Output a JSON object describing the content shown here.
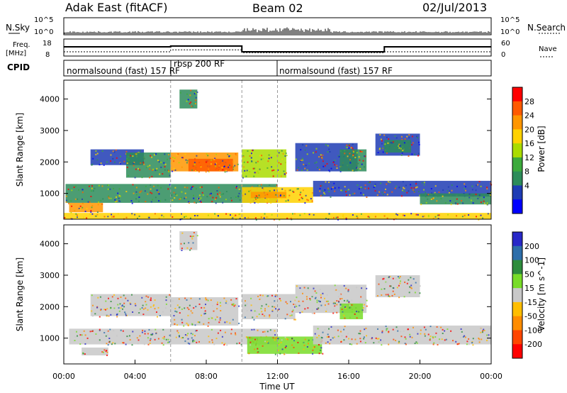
{
  "header": {
    "station": "Adak East (fitACF)",
    "beam": "Beam 02",
    "date": "02/Jul/2013"
  },
  "noise_panel": {
    "left_label": "N.Sky",
    "right_label": "N.Search",
    "ticks": [
      "10^5",
      "10^0"
    ]
  },
  "freq_panel": {
    "left_label_1": "Freq.",
    "left_label_2": "[MHz]",
    "left_ticks": [
      "18",
      "8"
    ],
    "right_label": "Nave",
    "right_ticks": [
      "60",
      "0"
    ]
  },
  "cpid_panel": {
    "label": "CPID",
    "segments": [
      {
        "text": "normalsound (fast) 157 RF",
        "start_h": 0
      },
      {
        "text": "rbsp 200 RF",
        "start_h": 6
      },
      {
        "text": "normalsound (fast) 157 RF",
        "start_h": 12
      }
    ]
  },
  "chart_data": [
    {
      "type": "heatmap",
      "name": "power",
      "ylabel": "Slant Range [km]",
      "xlabel": "",
      "xlim_hours": [
        0,
        24
      ],
      "ylim_km": [
        180,
        4600
      ],
      "yticks": [
        "1000",
        "2000",
        "3000",
        "4000"
      ],
      "colorbar_label": "Power [dB]",
      "colorbar_ticks": [
        "28",
        "24",
        "20",
        "16",
        "12",
        "8",
        "4"
      ],
      "colorbar_colors": [
        "#ff0000",
        "#ff5a00",
        "#ff9600",
        "#ffd200",
        "#aadc00",
        "#3caa3c",
        "#2d8c5a",
        "#1e3cb4",
        "#0000ff"
      ],
      "regions": [
        {
          "t0": 0.1,
          "t1": 12.0,
          "r0": 700,
          "r1": 1300,
          "color": "#2d8c5a"
        },
        {
          "t0": 0.3,
          "t1": 2.2,
          "r0": 400,
          "r1": 700,
          "color": "#ff9600"
        },
        {
          "t0": 1.5,
          "t1": 4.5,
          "r0": 1900,
          "r1": 2400,
          "color": "#1e3cb4"
        },
        {
          "t0": 3.5,
          "t1": 6.0,
          "r0": 1500,
          "r1": 2300,
          "color": "#2d8c5a"
        },
        {
          "t0": 6.0,
          "t1": 9.8,
          "r0": 1700,
          "r1": 2300,
          "color": "#ff9600"
        },
        {
          "t0": 7.0,
          "t1": 9.5,
          "r0": 1700,
          "r1": 2100,
          "color": "#ff5a00"
        },
        {
          "t0": 6.5,
          "t1": 7.5,
          "r0": 3700,
          "r1": 4300,
          "color": "#2d8c5a"
        },
        {
          "t0": 10.0,
          "t1": 12.5,
          "r0": 1500,
          "r1": 2400,
          "color": "#aadc00"
        },
        {
          "t0": 10.0,
          "t1": 14.0,
          "r0": 700,
          "r1": 1200,
          "color": "#ffd200"
        },
        {
          "t0": 10.5,
          "t1": 12.5,
          "r0": 850,
          "r1": 1050,
          "color": "#ff9600"
        },
        {
          "t0": 13.0,
          "t1": 16.5,
          "r0": 1700,
          "r1": 2600,
          "color": "#1e3cb4"
        },
        {
          "t0": 15.5,
          "t1": 17.0,
          "r0": 1700,
          "r1": 2400,
          "color": "#2d8c5a"
        },
        {
          "t0": 17.5,
          "t1": 20.0,
          "r0": 2200,
          "r1": 2900,
          "color": "#1e3cb4"
        },
        {
          "t0": 18.0,
          "t1": 19.5,
          "r0": 2300,
          "r1": 2700,
          "color": "#2d8c5a"
        },
        {
          "t0": 14.0,
          "t1": 24.0,
          "r0": 900,
          "r1": 1400,
          "color": "#1e3cb4"
        },
        {
          "t0": 20.0,
          "t1": 24.0,
          "r0": 650,
          "r1": 1000,
          "color": "#2d8c5a"
        },
        {
          "t0": 0.0,
          "t1": 24.0,
          "r0": 180,
          "r1": 380,
          "color": "#ffd200"
        }
      ]
    },
    {
      "type": "heatmap",
      "name": "velocity",
      "ylabel": "Slant Range [km]",
      "xlabel": "Time UT",
      "xlim_hours": [
        0,
        24
      ],
      "ylim_km": [
        180,
        4600
      ],
      "yticks": [
        "1000",
        "2000",
        "3000",
        "4000"
      ],
      "xticks": [
        "00:00",
        "04:00",
        "08:00",
        "12:00",
        "16:00",
        "20:00",
        "00:00"
      ],
      "colorbar_label": "Velocity [m s^-1]",
      "colorbar_ticks": [
        "200",
        "100",
        "50",
        "15",
        "-15",
        "-50",
        "-100",
        "-200"
      ],
      "colorbar_colors": [
        "#2828c8",
        "#2d6eaa",
        "#2d8c3c",
        "#78dc28",
        "#c8c8c8",
        "#ffbe00",
        "#ff8c00",
        "#ff4600",
        "#ff0000"
      ],
      "regions": [
        {
          "t0": 0.3,
          "t1": 12.0,
          "r0": 800,
          "r1": 1300,
          "color": "#c8c8c8"
        },
        {
          "t0": 1.0,
          "t1": 2.5,
          "r0": 450,
          "r1": 700,
          "color": "#c8c8c8"
        },
        {
          "t0": 1.5,
          "t1": 6.0,
          "r0": 1700,
          "r1": 2400,
          "color": "#c8c8c8"
        },
        {
          "t0": 6.0,
          "t1": 9.8,
          "r0": 1400,
          "r1": 2300,
          "color": "#c8c8c8"
        },
        {
          "t0": 6.5,
          "t1": 7.5,
          "r0": 3800,
          "r1": 4400,
          "color": "#c8c8c8"
        },
        {
          "t0": 10.0,
          "t1": 13.0,
          "r0": 1600,
          "r1": 2400,
          "color": "#c8c8c8"
        },
        {
          "t0": 10.3,
          "t1": 14.5,
          "r0": 500,
          "r1": 1050,
          "color": "#78dc28"
        },
        {
          "t0": 13.0,
          "t1": 17.0,
          "r0": 1800,
          "r1": 2700,
          "color": "#c8c8c8"
        },
        {
          "t0": 15.5,
          "t1": 16.8,
          "r0": 1600,
          "r1": 2100,
          "color": "#78dc28"
        },
        {
          "t0": 17.5,
          "t1": 20.0,
          "r0": 2300,
          "r1": 3000,
          "color": "#c8c8c8"
        },
        {
          "t0": 14.0,
          "t1": 24.0,
          "r0": 800,
          "r1": 1400,
          "color": "#c8c8c8"
        }
      ]
    }
  ]
}
